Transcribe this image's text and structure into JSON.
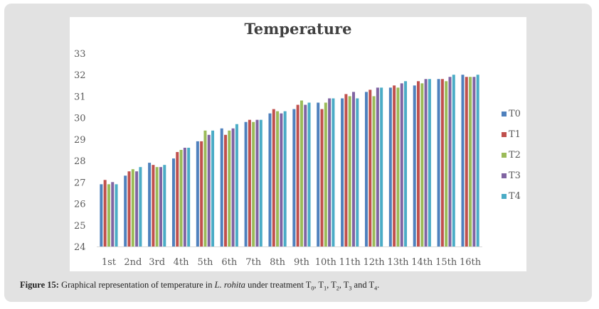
{
  "chart_data": {
    "type": "bar",
    "title": "Temperature",
    "xlabel": "",
    "ylabel": "",
    "ylim": [
      24,
      33
    ],
    "yticks": [
      "24",
      "25",
      "26",
      "27",
      "28",
      "29",
      "30",
      "31",
      "32",
      "33"
    ],
    "grid": false,
    "legend_position": "right",
    "categories": [
      "1st",
      "2nd",
      "3rd",
      "4th",
      "5th",
      "6th",
      "7th",
      "8th",
      "9th",
      "10th",
      "11th",
      "12th",
      "13th",
      "14th",
      "15th",
      "16th"
    ],
    "series": [
      {
        "name": "T0",
        "color": "#4f81bd",
        "values": [
          26.9,
          27.3,
          27.9,
          28.1,
          28.9,
          29.5,
          29.8,
          30.2,
          30.4,
          30.7,
          30.9,
          31.2,
          31.4,
          31.5,
          31.8,
          32.0
        ]
      },
      {
        "name": "T1",
        "color": "#c0504d",
        "values": [
          27.1,
          27.5,
          27.8,
          28.4,
          28.9,
          29.2,
          29.9,
          30.4,
          30.6,
          30.4,
          31.1,
          31.3,
          31.5,
          31.7,
          31.8,
          31.9
        ]
      },
      {
        "name": "T2",
        "color": "#9bbb59",
        "values": [
          26.9,
          27.6,
          27.7,
          28.5,
          29.4,
          29.4,
          29.8,
          30.3,
          30.8,
          30.7,
          31.0,
          31.0,
          31.4,
          31.6,
          31.7,
          31.9
        ]
      },
      {
        "name": "T3",
        "color": "#8064a2",
        "values": [
          27.0,
          27.5,
          27.7,
          28.6,
          29.2,
          29.5,
          29.9,
          30.2,
          30.6,
          30.9,
          31.2,
          31.4,
          31.6,
          31.8,
          31.9,
          31.9
        ]
      },
      {
        "name": "T4",
        "color": "#4bacc6",
        "values": [
          26.9,
          27.7,
          27.8,
          28.6,
          29.4,
          29.7,
          29.9,
          30.3,
          30.7,
          30.9,
          30.9,
          31.4,
          31.7,
          31.8,
          32.0,
          32.0
        ]
      }
    ]
  },
  "caption": {
    "label": "Figure 15:",
    "text_before": " Graphical representation of temperature in ",
    "species": "L. rohita",
    "text_after": " under treatment ",
    "t0": "T",
    "t0_sub": "0",
    "sep1": ", ",
    "t1": "T",
    "t1_sub": "1",
    "sep2": ", ",
    "t2": "T",
    "t2_sub": "2",
    "sep3": ", ",
    "t3": "T",
    "t3_sub": "3",
    "and": " and ",
    "t4": "T",
    "t4_sub": "4",
    "end": "."
  }
}
